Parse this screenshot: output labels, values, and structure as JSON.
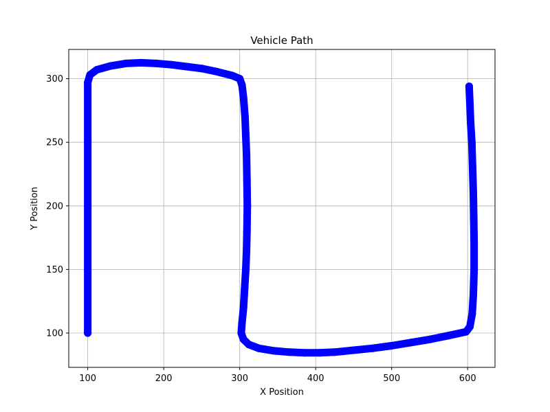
{
  "chart_data": {
    "type": "scatter",
    "title": "Vehicle Path",
    "xlabel": "X Position",
    "ylabel": "Y Position",
    "xlim": [
      75,
      636
    ],
    "ylim": [
      73,
      323
    ],
    "xticks": [
      100,
      200,
      300,
      400,
      500,
      600
    ],
    "yticks": [
      100,
      150,
      200,
      250,
      300
    ],
    "grid": true,
    "series": [
      {
        "color": "#0000ff",
        "points": [
          [
            100,
            100
          ],
          [
            100,
            150
          ],
          [
            100,
            200
          ],
          [
            100,
            250
          ],
          [
            100,
            297
          ],
          [
            103,
            303
          ],
          [
            112,
            307
          ],
          [
            130,
            310
          ],
          [
            150,
            312
          ],
          [
            170,
            312.5
          ],
          [
            190,
            312
          ],
          [
            210,
            311
          ],
          [
            230,
            309.5
          ],
          [
            250,
            308
          ],
          [
            270,
            305.5
          ],
          [
            290,
            302.5
          ],
          [
            300,
            300
          ],
          [
            303,
            295
          ],
          [
            305,
            285
          ],
          [
            307,
            270
          ],
          [
            308,
            255
          ],
          [
            309,
            240
          ],
          [
            309.5,
            220
          ],
          [
            310,
            200
          ],
          [
            309.5,
            180
          ],
          [
            309,
            165
          ],
          [
            308,
            150
          ],
          [
            306.5,
            135
          ],
          [
            305,
            120
          ],
          [
            303,
            108
          ],
          [
            302,
            100
          ],
          [
            305,
            95
          ],
          [
            312,
            91
          ],
          [
            325,
            88
          ],
          [
            345,
            86
          ],
          [
            365,
            85
          ],
          [
            385,
            84.5
          ],
          [
            405,
            84.5
          ],
          [
            425,
            85
          ],
          [
            450,
            86.5
          ],
          [
            475,
            88
          ],
          [
            500,
            90
          ],
          [
            525,
            92.5
          ],
          [
            550,
            95
          ],
          [
            575,
            98
          ],
          [
            598,
            101
          ],
          [
            603,
            105
          ],
          [
            606,
            115
          ],
          [
            607.5,
            130
          ],
          [
            608.5,
            150
          ],
          [
            608.5,
            170
          ],
          [
            608,
            190
          ],
          [
            607.5,
            210
          ],
          [
            606.5,
            230
          ],
          [
            605.5,
            250
          ],
          [
            604,
            265
          ],
          [
            603,
            280
          ],
          [
            602,
            294
          ]
        ]
      }
    ]
  }
}
